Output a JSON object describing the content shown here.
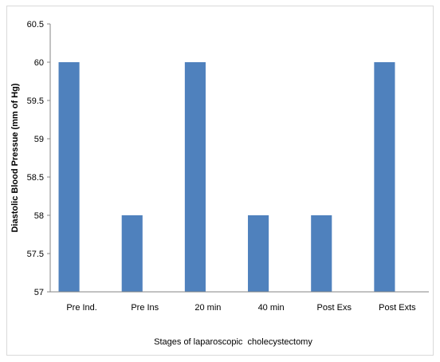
{
  "chart_data": {
    "type": "bar",
    "title": "",
    "xlabel": "Stages of laparoscopic  cholecystectomy",
    "ylabel": "Diastolic Blood Pressue (mm of Hg)",
    "categories": [
      "Pre Ind.",
      "Pre Ins",
      "20 min",
      "40 min",
      "Post Exs",
      "Post Exts"
    ],
    "values": [
      60,
      58,
      60,
      58,
      58,
      60
    ],
    "ylim": [
      57,
      60.5
    ],
    "yticks": [
      "57",
      "57.5",
      "58",
      "58.5",
      "59",
      "59.5",
      "60",
      "60.5"
    ],
    "bar_color": "#4f81bd",
    "grid": false,
    "legend": "none"
  }
}
